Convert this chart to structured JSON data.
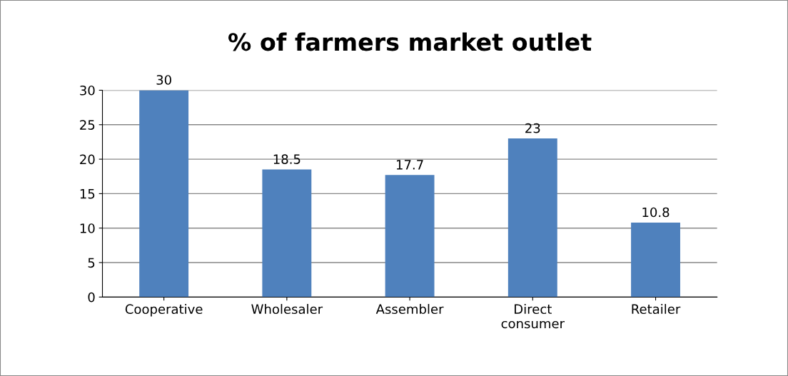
{
  "chart_data": {
    "type": "bar",
    "title": "% of farmers market outlet",
    "categories": [
      "Cooperative",
      "Wholesaler",
      "Assembler",
      "Direct\nconsumer",
      "Retailer"
    ],
    "values": [
      30,
      18.5,
      17.7,
      23,
      10.8
    ],
    "color": "#4f81bd",
    "ylim": [
      0,
      30
    ],
    "yticks": [
      0,
      5,
      10,
      15,
      20,
      25,
      30
    ],
    "grid": "y",
    "data_labels": true
  }
}
